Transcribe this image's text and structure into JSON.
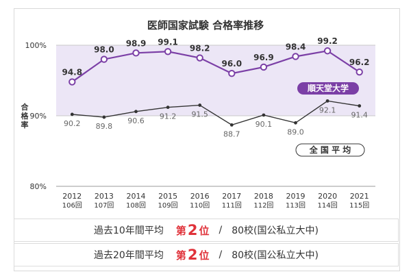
{
  "chart_data": {
    "type": "line",
    "title": "医師国家試験 合格率推移",
    "ylabel": "合格率",
    "ylim": [
      80,
      100
    ],
    "yticks": [
      "80%",
      "90%",
      "100%"
    ],
    "x": [
      "2012",
      "2013",
      "2014",
      "2015",
      "2016",
      "2017",
      "2018",
      "2019",
      "2020",
      "2021"
    ],
    "x_sub": [
      "106回",
      "107回",
      "108回",
      "109回",
      "110回",
      "111回",
      "112回",
      "113回",
      "114回",
      "115回"
    ],
    "series": [
      {
        "name": "順天堂大学",
        "color": "#7b3fa6",
        "values": [
          94.8,
          98.0,
          98.9,
          99.1,
          98.2,
          96.0,
          96.9,
          98.4,
          99.2,
          96.2
        ],
        "labels": [
          "94.8",
          "98.0",
          "98.9",
          "99.1",
          "98.2",
          "96.0",
          "96.9",
          "98.4",
          "99.2",
          "96.2"
        ]
      },
      {
        "name": "全 国 平 均",
        "color": "#333333",
        "values": [
          90.2,
          89.8,
          90.6,
          91.2,
          91.5,
          88.7,
          90.1,
          89.0,
          92.1,
          91.4
        ],
        "labels": [
          "90.2",
          "89.8",
          "90.6",
          "91.2",
          "91.5",
          "88.7",
          "90.1",
          "89.0",
          "92.1",
          "91.4"
        ]
      }
    ],
    "band_color": "#ece6f6",
    "legend": "inline"
  },
  "summary": {
    "rows": [
      {
        "label": "過去10年間平均",
        "rank_prefix": "第",
        "rank_num": "2",
        "rank_suffix": "位",
        "slash": "/",
        "total": "80校(国公私立大中)"
      },
      {
        "label": "過去20年間平均",
        "rank_prefix": "第",
        "rank_num": "2",
        "rank_suffix": "位",
        "slash": "/",
        "total": "80校(国公私立大中)"
      }
    ]
  }
}
